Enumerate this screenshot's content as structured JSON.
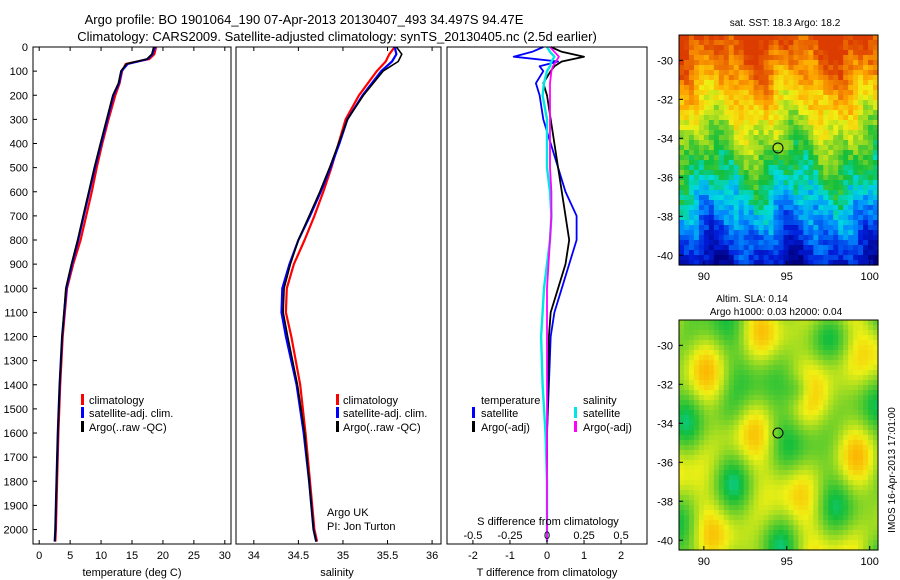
{
  "title": {
    "line1": "Argo profile: BO 1901064_190 07-Apr-2013 20130407_493 34.497S 94.47E",
    "line2": "Climatology: CARS2009. Satellite-adjusted climatology: synTS_20130405.nc (2.5d earlier)"
  },
  "colors": {
    "climatology": "#ff0000",
    "satellite": "#0000ff",
    "argo": "#000000",
    "salinity_satellite": "#00e5e5",
    "salinity_argo": "#ff00ff"
  },
  "depth_ticks": [
    "0",
    "100",
    "200",
    "300",
    "400",
    "500",
    "600",
    "700",
    "800",
    "900",
    "1000",
    "1100",
    "1200",
    "1300",
    "1400",
    "1500",
    "1600",
    "1700",
    "1800",
    "1900",
    "2000"
  ],
  "chart_data": [
    {
      "type": "line",
      "name": "temperature",
      "xlabel": "temperature (deg C)",
      "xlim": [
        -1,
        31
      ],
      "ylim": [
        2060,
        0
      ],
      "x_ticks": [
        "0",
        "5",
        "10",
        "15",
        "20",
        "25",
        "30"
      ],
      "legend": [
        "climatology",
        "satellite-adj. clim.",
        "Argo(..raw -QC)"
      ],
      "depth": [
        0,
        30,
        50,
        70,
        100,
        150,
        200,
        300,
        400,
        500,
        600,
        700,
        800,
        900,
        1000,
        1200,
        1400,
        1600,
        1800,
        2000,
        2050
      ],
      "series": [
        {
          "name": "climatology",
          "values": [
            18.9,
            18.6,
            17.8,
            14.0,
            13.4,
            13.0,
            12.3,
            11.2,
            10.2,
            9.3,
            8.5,
            7.6,
            6.7,
            5.5,
            4.5,
            3.8,
            3.4,
            3.1,
            2.9,
            2.7,
            2.6
          ]
        },
        {
          "name": "satellite-adj. clim.",
          "values": [
            18.7,
            18.3,
            17.5,
            14.3,
            13.3,
            12.9,
            12.0,
            11.0,
            10.0,
            9.0,
            8.1,
            7.2,
            6.3,
            5.3,
            4.4,
            3.7,
            3.3,
            3.0,
            2.8,
            2.6,
            2.5
          ]
        },
        {
          "name": "Argo(..raw -QC)",
          "values": [
            18.5,
            18.2,
            17.4,
            14.1,
            13.2,
            12.8,
            11.9,
            10.9,
            9.9,
            8.9,
            8.0,
            7.1,
            6.2,
            5.2,
            4.3,
            3.7,
            3.3,
            3.0,
            2.8,
            2.6,
            2.5
          ]
        }
      ]
    },
    {
      "type": "line",
      "name": "salinity",
      "xlabel": "salinity",
      "xlim": [
        33.8,
        36.1
      ],
      "ylim": [
        2060,
        0
      ],
      "x_ticks": [
        "34",
        "34.5",
        "35",
        "35.5",
        "36"
      ],
      "legend": [
        "climatology",
        "satellite-adj. clim.",
        "Argo(..raw -QC)"
      ],
      "depth": [
        0,
        30,
        60,
        100,
        200,
        300,
        400,
        500,
        600,
        700,
        800,
        900,
        1000,
        1100,
        1200,
        1400,
        1600,
        1800,
        2000,
        2050
      ],
      "series": [
        {
          "name": "climatology",
          "values": [
            35.58,
            35.52,
            35.48,
            35.38,
            35.18,
            35.03,
            34.95,
            34.87,
            34.78,
            34.68,
            34.57,
            34.45,
            34.37,
            34.36,
            34.42,
            34.52,
            34.58,
            34.63,
            34.68,
            34.71
          ]
        },
        {
          "name": "satellite-adj. clim.",
          "values": [
            35.58,
            35.6,
            35.55,
            35.43,
            35.22,
            35.05,
            34.96,
            34.86,
            34.75,
            34.63,
            34.5,
            34.4,
            34.32,
            34.31,
            34.36,
            34.48,
            34.56,
            34.62,
            34.67,
            34.7
          ]
        },
        {
          "name": "Argo(..raw -QC)",
          "values": [
            35.6,
            35.66,
            35.62,
            35.45,
            35.23,
            35.05,
            34.95,
            34.85,
            34.74,
            34.62,
            34.5,
            34.41,
            34.34,
            34.33,
            34.38,
            34.49,
            34.57,
            34.62,
            34.67,
            34.7
          ]
        }
      ],
      "annotation": [
        "Argo UK",
        "PI: Jon Turton"
      ]
    },
    {
      "type": "line",
      "name": "difference",
      "xlabel": "T difference from climatology",
      "top_label": "S difference from climatology",
      "xlim": [
        -2.7,
        2.7
      ],
      "ylim": [
        2060,
        0
      ],
      "x_ticks": [
        "-2",
        "-1",
        "0",
        "1",
        "2"
      ],
      "top_ticks": [
        "-0.5",
        "-0.25",
        "0",
        "0.25",
        "0.5"
      ],
      "legend": {
        "temperature_title": "temperature",
        "salinity_title": "salinity",
        "t_satellite": "satellite",
        "t_argo": "Argo(-adj)",
        "s_satellite": "satellite",
        "s_argo": "Argo(-adj)"
      },
      "depth": [
        0,
        20,
        40,
        60,
        80,
        100,
        150,
        200,
        300,
        400,
        500,
        600,
        700,
        800,
        900,
        1000,
        1100,
        1200,
        1400,
        1600,
        1800,
        2000,
        2050
      ],
      "series": [
        {
          "name": "temperature satellite",
          "values": [
            -0.1,
            -0.4,
            -0.9,
            0.3,
            -0.2,
            -0.1,
            -0.3,
            -0.2,
            -0.1,
            0.1,
            0.3,
            0.5,
            0.8,
            0.8,
            0.6,
            0.4,
            0.2,
            0.1,
            0.05,
            0.0,
            0.0,
            0.0,
            0.0
          ]
        },
        {
          "name": "temperature Argo(-adj)",
          "values": [
            0.1,
            0.4,
            1.0,
            0.4,
            0.2,
            0.1,
            -0.1,
            0.0,
            0.1,
            0.2,
            0.3,
            0.4,
            0.5,
            0.6,
            0.5,
            0.3,
            0.1,
            0.05,
            0.03,
            0.0,
            0.0,
            0.0,
            0.0
          ]
        },
        {
          "name": "salinity satellite",
          "values": [
            0.0,
            0.02,
            0.05,
            0.03,
            0.02,
            0.0,
            -0.02,
            -0.03,
            0.0,
            0.0,
            0.0,
            0.02,
            0.03,
            0.02,
            0.0,
            -0.02,
            -0.03,
            -0.04,
            -0.03,
            -0.01,
            0.0,
            0.0,
            0.0
          ]
        },
        {
          "name": "salinity Argo(-adj)",
          "values": [
            0.02,
            0.05,
            0.08,
            0.06,
            0.04,
            0.03,
            0.02,
            0.02,
            0.02,
            0.02,
            0.02,
            0.03,
            0.03,
            0.02,
            0.01,
            0.0,
            0.0,
            0.0,
            0.0,
            0.0,
            0.0,
            0.0,
            0.0
          ]
        }
      ]
    },
    {
      "type": "heatmap",
      "name": "sst-map",
      "title": "sat. SST: 18.3 Argo: 18.2",
      "xlim": [
        88.5,
        100.5
      ],
      "ylim": [
        -40.5,
        -28.7
      ],
      "x_ticks": [
        "90",
        "95",
        "100"
      ],
      "y_ticks": [
        "-30",
        "-32",
        "-34",
        "-36",
        "-38",
        "-40"
      ],
      "marker": {
        "lon": 94.47,
        "lat": -34.497
      }
    },
    {
      "type": "heatmap",
      "name": "sla-map",
      "title_line1": "Altim. SLA: 0.14",
      "title_line2": "Argo h1000: 0.03 h2000: 0.04",
      "xlim": [
        88.5,
        100.5
      ],
      "ylim": [
        -40.5,
        -28.7
      ],
      "x_ticks": [
        "90",
        "95",
        "100"
      ],
      "y_ticks": [
        "-30",
        "-32",
        "-34",
        "-36",
        "-38",
        "-40"
      ],
      "marker": {
        "lon": 94.47,
        "lat": -34.497
      }
    }
  ],
  "credit": "IMOS 16-Apr-2013 17:01:00"
}
